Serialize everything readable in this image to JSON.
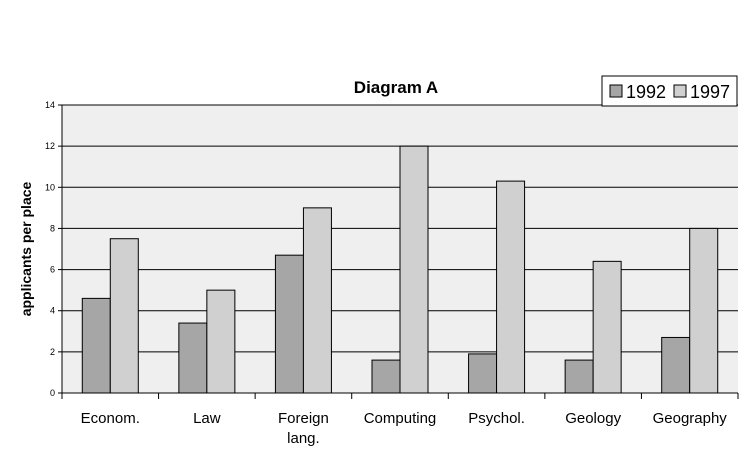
{
  "chart_data": {
    "type": "bar",
    "title": "Diagram A",
    "xlabel": "",
    "ylabel": "applicants per place",
    "categories": [
      [
        "Econom."
      ],
      [
        "Law"
      ],
      [
        "Foreign",
        "lang."
      ],
      [
        "Computing"
      ],
      [
        "Psychol."
      ],
      [
        "Geology"
      ],
      [
        "Geography"
      ]
    ],
    "series": [
      {
        "name": "1992",
        "color": "#a6a6a6",
        "values": [
          4.6,
          3.4,
          6.7,
          1.6,
          1.9,
          1.6,
          2.7
        ]
      },
      {
        "name": "1997",
        "color": "#d0d0d0",
        "values": [
          7.5,
          5.0,
          9.0,
          12.0,
          10.3,
          6.4,
          8.0
        ]
      }
    ],
    "ylim": [
      0,
      14
    ],
    "yticks": [
      0,
      2,
      4,
      6,
      8,
      10,
      12,
      14
    ],
    "grid": true,
    "plot_background": "#efefef",
    "legend_position": "top-right"
  }
}
